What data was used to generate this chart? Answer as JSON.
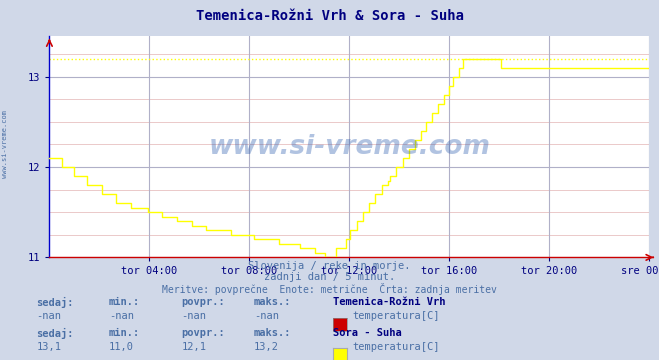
{
  "title": "Temenica-Rožni Vrh & Sora - Suha",
  "title_color": "#000080",
  "bg_color": "#d0d8e8",
  "plot_bg_color": "#ffffff",
  "grid_color_major": "#b0b0c8",
  "grid_color_minor": "#e8c0c0",
  "ylim": [
    11.0,
    13.45
  ],
  "yticks": [
    11,
    12,
    13
  ],
  "xlabel_ticks": [
    "tor 04:00",
    "tor 08:00",
    "tor 12:00",
    "tor 16:00",
    "tor 20:00",
    "sre 00:00"
  ],
  "xtick_fracs": [
    0.1667,
    0.3333,
    0.5,
    0.6667,
    0.8333,
    1.0
  ],
  "sora_color": "#ffff00",
  "temenica_color": "#cc0000",
  "watermark": "www.si-vreme.com",
  "watermark_color": "#2255aa",
  "watermark_alpha": 0.35,
  "subtitle1": "Slovenija / reke in morje.",
  "subtitle2": "zadnji dan / 5 minut.",
  "subtitle3": "Meritve: povprečne  Enote: metrične  Črta: zadnja meritev",
  "subtitle_color": "#4a6fa5",
  "left_label": "www.si-vreme.com",
  "left_label_color": "#4a6fa5",
  "n_points": 288,
  "sora_max": 13.2
}
